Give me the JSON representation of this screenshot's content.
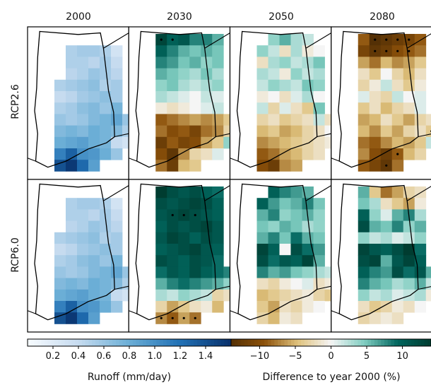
{
  "chart_data": {
    "type": "heatmap",
    "column_titles": [
      "2000",
      "2030",
      "2050",
      "2080"
    ],
    "row_labels": [
      "RCP2.6",
      "RCP6.0"
    ],
    "colorbars": [
      {
        "label": "Runoff (mm/day)",
        "ticks": [
          "0.2",
          "0.4",
          "0.6",
          "0.8",
          "1.0",
          "1.2",
          "1.4"
        ],
        "tick_values": [
          0.2,
          0.4,
          0.6,
          0.8,
          1.0,
          1.2,
          1.4
        ],
        "range": [
          0.0,
          1.6
        ],
        "colors": [
          "#f7fbff",
          "#08306b"
        ]
      },
      {
        "label": "Difference to year 2000 (%)",
        "ticks": [
          "−10",
          "−5",
          "0",
          "5",
          "10"
        ],
        "tick_values": [
          -10,
          -5,
          0,
          5,
          10
        ],
        "range": [
          -14,
          14
        ],
        "colors": [
          "#543005",
          "#8c510a",
          "#dfc27d",
          "#f5f5f5",
          "#80cdc1",
          "#01665e",
          "#003c30"
        ]
      }
    ],
    "grid_cols": 8,
    "grid_rows": 12,
    "panels": [
      {
        "row": 0,
        "col": 0,
        "kind": "abs",
        "stipple": [],
        "values": [
          [
            null,
            null,
            null,
            null,
            null,
            null,
            null,
            null
          ],
          [
            null,
            null,
            0.5,
            0.55,
            0.55,
            0.5,
            0.3,
            null
          ],
          [
            null,
            null,
            0.5,
            0.5,
            0.45,
            0.55,
            0.4,
            null
          ],
          [
            null,
            null,
            0.45,
            0.5,
            0.6,
            0.55,
            0.45,
            null
          ],
          [
            null,
            0.5,
            0.55,
            0.6,
            0.65,
            0.5,
            0.55,
            null
          ],
          [
            null,
            0.4,
            0.45,
            0.55,
            0.6,
            0.65,
            0.55,
            null
          ],
          [
            null,
            0.5,
            0.55,
            0.65,
            0.7,
            0.6,
            0.75,
            null
          ],
          [
            null,
            0.6,
            0.55,
            0.6,
            0.7,
            0.75,
            0.85,
            0.6
          ],
          [
            null,
            0.7,
            0.75,
            0.7,
            0.8,
            0.75,
            0.7,
            0.5
          ],
          [
            null,
            0.8,
            0.85,
            0.9,
            0.8,
            0.75,
            0.4,
            0.3
          ],
          [
            null,
            1.1,
            1.3,
            1.0,
            0.95,
            0.8,
            0.6,
            null
          ],
          [
            null,
            1.4,
            1.55,
            1.25,
            0.9,
            null,
            null,
            null
          ]
        ]
      },
      {
        "row": 0,
        "col": 1,
        "kind": "diff",
        "stipple": [
          [
            0,
            1
          ],
          [
            0,
            2
          ]
        ],
        "values": [
          [
            null,
            13,
            10,
            11,
            8,
            8,
            6,
            null
          ],
          [
            null,
            10,
            8,
            6,
            5,
            6,
            5,
            null
          ],
          [
            null,
            8,
            7,
            5,
            6,
            4,
            5,
            null
          ],
          [
            null,
            6,
            5,
            4,
            3,
            5,
            3,
            null
          ],
          [
            null,
            4,
            5,
            3,
            2,
            3,
            4,
            null
          ],
          [
            null,
            3,
            2,
            1,
            0,
            2,
            1,
            null
          ],
          [
            null,
            -1,
            -2,
            -1,
            0,
            1,
            2,
            null
          ],
          [
            null,
            -9,
            -8,
            -7,
            -6,
            -7,
            -6,
            -4
          ],
          [
            null,
            -8,
            -10,
            -9,
            -11,
            -8,
            -7,
            -3
          ],
          [
            null,
            -12,
            -9,
            -11,
            -10,
            -6,
            -4,
            4
          ],
          [
            null,
            -10,
            -13,
            -7,
            -3,
            -2,
            1,
            null
          ],
          [
            null,
            -8,
            -12,
            -5,
            -4,
            null,
            null,
            null
          ]
        ]
      },
      {
        "row": 0,
        "col": 2,
        "kind": "diff",
        "stipple": [],
        "values": [
          [
            null,
            null,
            4,
            6,
            3,
            2,
            null,
            null
          ],
          [
            null,
            4,
            2,
            -2,
            3,
            -1,
            0,
            null
          ],
          [
            null,
            -2,
            3,
            4,
            2,
            3,
            5,
            null
          ],
          [
            null,
            3,
            2,
            -1,
            4,
            2,
            3,
            null
          ],
          [
            null,
            2,
            4,
            3,
            2,
            5,
            4,
            null
          ],
          [
            null,
            -1,
            0,
            -2,
            1,
            3,
            0,
            null
          ],
          [
            null,
            2,
            -3,
            1,
            -2,
            -4,
            5,
            null
          ],
          [
            null,
            -3,
            -2,
            -4,
            -3,
            -2,
            2,
            -2
          ],
          [
            null,
            -5,
            -4,
            -6,
            -5,
            -3,
            -2,
            0
          ],
          [
            null,
            -7,
            -6,
            -5,
            -4,
            -3,
            -2,
            -1
          ],
          [
            null,
            -9,
            -8,
            -6,
            -5,
            -3,
            -2,
            null
          ],
          [
            null,
            -10,
            -12,
            -7,
            -6,
            null,
            null,
            null
          ]
        ]
      },
      {
        "row": 0,
        "col": 3,
        "kind": "diff",
        "stipple": [
          [
            0,
            2
          ],
          [
            0,
            3
          ],
          [
            0,
            4
          ],
          [
            0,
            5
          ],
          [
            1,
            2
          ],
          [
            1,
            3
          ],
          [
            1,
            4
          ],
          [
            1,
            5
          ],
          [
            8,
            7
          ],
          [
            10,
            4
          ],
          [
            11,
            3
          ]
        ],
        "values": [
          [
            null,
            -9,
            -14,
            -13,
            -12,
            -11,
            -9,
            null
          ],
          [
            null,
            -11,
            -13,
            -12,
            -10,
            -9,
            -8,
            null
          ],
          [
            null,
            -6,
            -8,
            -5,
            -7,
            -6,
            -4,
            null
          ],
          [
            null,
            -2,
            -4,
            0,
            -3,
            -5,
            -2,
            null
          ],
          [
            null,
            -3,
            -1,
            2,
            -2,
            -4,
            -1,
            null
          ],
          [
            null,
            1,
            -2,
            -3,
            2,
            0,
            1,
            null
          ],
          [
            null,
            -4,
            -2,
            -5,
            -3,
            -2,
            1,
            null
          ],
          [
            null,
            -6,
            -5,
            -2,
            -4,
            -6,
            -3,
            -2
          ],
          [
            null,
            -5,
            -7,
            -4,
            -6,
            -3,
            -2,
            -4
          ],
          [
            null,
            -8,
            -9,
            -7,
            -5,
            -6,
            -4,
            2
          ],
          [
            null,
            -7,
            -10,
            -12,
            -9,
            -5,
            -3,
            null
          ],
          [
            null,
            -9,
            -11,
            -13,
            -8,
            null,
            null,
            null
          ]
        ]
      },
      {
        "row": 1,
        "col": 0,
        "kind": "abs",
        "stipple": [],
        "values": [
          [
            null,
            null,
            null,
            null,
            null,
            null,
            null,
            null
          ],
          [
            null,
            null,
            0.5,
            0.55,
            0.55,
            0.5,
            0.3,
            null
          ],
          [
            null,
            null,
            0.5,
            0.5,
            0.45,
            0.55,
            0.4,
            null
          ],
          [
            null,
            null,
            0.45,
            0.5,
            0.6,
            0.55,
            0.45,
            null
          ],
          [
            null,
            0.5,
            0.55,
            0.6,
            0.65,
            0.5,
            0.55,
            null
          ],
          [
            null,
            0.4,
            0.45,
            0.55,
            0.6,
            0.65,
            0.55,
            null
          ],
          [
            null,
            0.5,
            0.55,
            0.65,
            0.7,
            0.6,
            0.75,
            null
          ],
          [
            null,
            0.6,
            0.55,
            0.6,
            0.7,
            0.75,
            0.85,
            0.6
          ],
          [
            null,
            0.7,
            0.75,
            0.7,
            0.8,
            0.75,
            0.7,
            0.5
          ],
          [
            null,
            0.8,
            0.85,
            0.9,
            0.8,
            0.75,
            0.4,
            0.3
          ],
          [
            null,
            1.1,
            1.3,
            1.0,
            0.95,
            0.8,
            0.6,
            null
          ],
          [
            null,
            1.4,
            1.55,
            1.25,
            0.9,
            null,
            null,
            null
          ]
        ]
      },
      {
        "row": 1,
        "col": 1,
        "kind": "diff",
        "stipple": [
          [
            2,
            2
          ],
          [
            2,
            3
          ],
          [
            2,
            4
          ],
          [
            11,
            1
          ],
          [
            11,
            2
          ],
          [
            11,
            3
          ],
          [
            11,
            4
          ]
        ],
        "values": [
          [
            null,
            14,
            12,
            11,
            12,
            10,
            9,
            null
          ],
          [
            null,
            12,
            11,
            12,
            13,
            12,
            10,
            null
          ],
          [
            null,
            11,
            12,
            13,
            12,
            11,
            10,
            null
          ],
          [
            null,
            10,
            12,
            11,
            12,
            13,
            11,
            null
          ],
          [
            null,
            11,
            13,
            12,
            10,
            12,
            11,
            null
          ],
          [
            null,
            10,
            11,
            12,
            13,
            11,
            10,
            null
          ],
          [
            null,
            12,
            11,
            10,
            12,
            11,
            9,
            null
          ],
          [
            null,
            9,
            11,
            10,
            12,
            10,
            9,
            8
          ],
          [
            null,
            6,
            8,
            9,
            8,
            7,
            6,
            4
          ],
          [
            null,
            3,
            2,
            4,
            3,
            2,
            -3,
            -2
          ],
          [
            null,
            -3,
            -6,
            -4,
            -2,
            -1,
            -5,
            null
          ],
          [
            null,
            -7,
            -9,
            -6,
            -8,
            null,
            null,
            null
          ]
        ]
      },
      {
        "row": 1,
        "col": 2,
        "kind": "diff",
        "stipple": [],
        "values": [
          [
            null,
            null,
            10,
            8,
            7,
            6,
            null,
            null
          ],
          [
            null,
            10,
            7,
            5,
            6,
            8,
            5,
            null
          ],
          [
            null,
            6,
            8,
            4,
            5,
            6,
            4,
            null
          ],
          [
            null,
            5,
            4,
            6,
            5,
            3,
            4,
            null
          ],
          [
            null,
            6,
            8,
            5,
            9,
            6,
            5,
            null
          ],
          [
            null,
            13,
            10,
            0,
            12,
            9,
            7,
            null
          ],
          [
            null,
            12,
            9,
            11,
            10,
            13,
            6,
            null
          ],
          [
            null,
            8,
            6,
            7,
            5,
            4,
            3,
            2
          ],
          [
            null,
            -2,
            -3,
            -1,
            0,
            1,
            -2,
            -1
          ],
          [
            null,
            -5,
            -4,
            -3,
            -2,
            -1,
            -3,
            -4
          ],
          [
            null,
            -4,
            -6,
            -2,
            -3,
            -1,
            0,
            null
          ],
          [
            null,
            -3,
            -5,
            -1,
            -2,
            null,
            null,
            null
          ]
        ]
      },
      {
        "row": 1,
        "col": 3,
        "kind": "diff",
        "stipple": [],
        "values": [
          [
            null,
            6,
            -4,
            -8,
            -6,
            -3,
            -2,
            null
          ],
          [
            null,
            5,
            3,
            -2,
            -4,
            -6,
            -1,
            null
          ],
          [
            null,
            10,
            4,
            1,
            6,
            8,
            3,
            null
          ],
          [
            null,
            12,
            6,
            5,
            8,
            4,
            6,
            null
          ],
          [
            null,
            4,
            2,
            3,
            1,
            2,
            4,
            null
          ],
          [
            null,
            13,
            11,
            10,
            12,
            14,
            9,
            null
          ],
          [
            null,
            12,
            13,
            6,
            11,
            13,
            10,
            null
          ],
          [
            null,
            10,
            8,
            7,
            12,
            9,
            11,
            6
          ],
          [
            null,
            8,
            6,
            5,
            3,
            4,
            6,
            2
          ],
          [
            null,
            4,
            2,
            3,
            1,
            2,
            3,
            -1
          ],
          [
            null,
            -2,
            -4,
            -3,
            -1,
            -2,
            0,
            null
          ],
          [
            null,
            -3,
            -2,
            -1,
            -2,
            null,
            null,
            null
          ]
        ]
      }
    ]
  }
}
